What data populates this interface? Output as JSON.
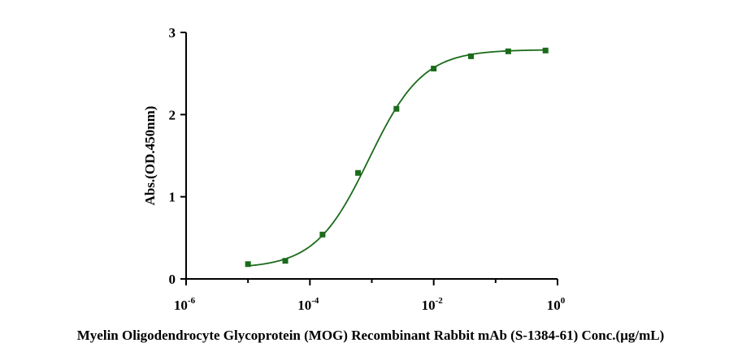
{
  "chart_data": {
    "type": "scatter",
    "xlabel": "Myelin Oligodendrocyte Glycoprotein (MOG) Recombinant Rabbit mAb (S-1384-61) Conc.(μg/mL)",
    "ylabel": "Abs.(OD.450nm)",
    "xscale": "log",
    "xlim": [
      1e-06,
      1
    ],
    "ylim": [
      0,
      3
    ],
    "x_ticks": [
      {
        "base": "10",
        "exp": "-6",
        "value": 1e-06
      },
      {
        "base": "10",
        "exp": "-4",
        "value": 0.0001
      },
      {
        "base": "10",
        "exp": "-2",
        "value": 0.01
      },
      {
        "base": "10",
        "exp": "0",
        "value": 1
      }
    ],
    "y_ticks": [
      "0",
      "1",
      "2",
      "3"
    ],
    "grid": false,
    "series": [
      {
        "color": "#1a6b1a",
        "marker": "square",
        "fit": "4PL",
        "x": [
          1e-05,
          4e-05,
          0.00016,
          0.0006,
          0.0025,
          0.01,
          0.04,
          0.16,
          0.64
        ],
        "y": [
          0.18,
          0.22,
          0.54,
          1.29,
          2.07,
          2.56,
          2.71,
          2.77,
          2.78
        ]
      }
    ],
    "fit_params": {
      "bottom": 0.13,
      "top": 2.79,
      "ec50": 0.0009,
      "hill": 1.0
    }
  }
}
